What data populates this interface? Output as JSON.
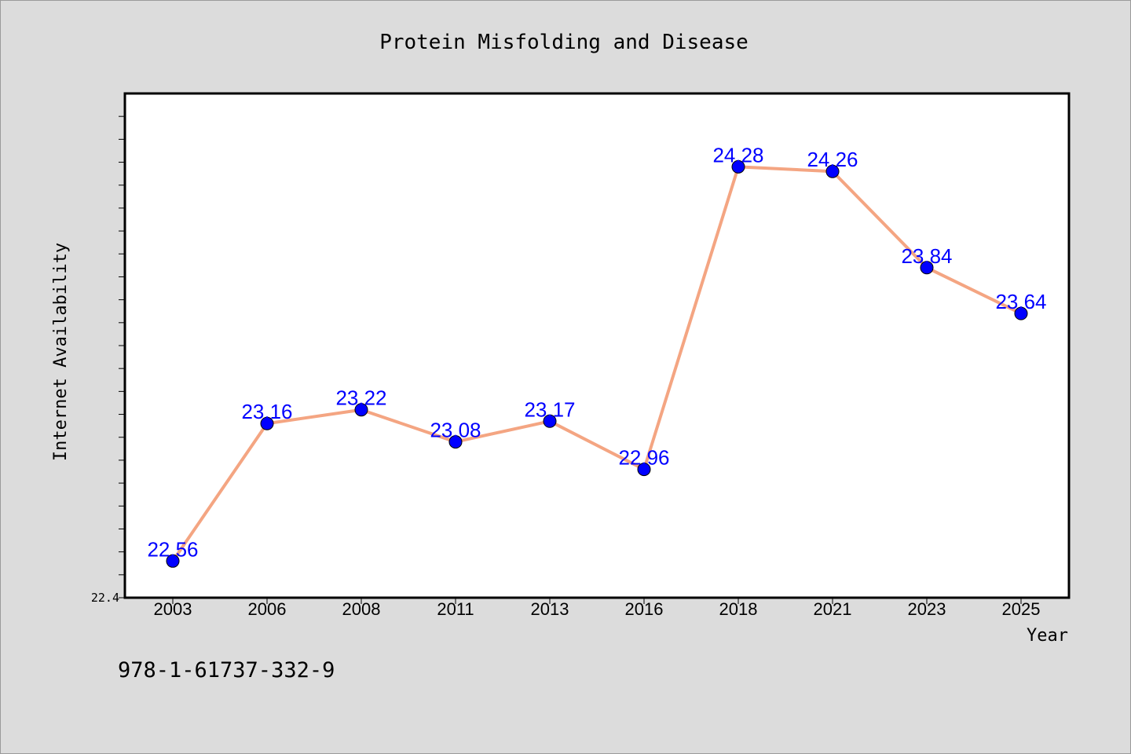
{
  "chart_data": {
    "type": "line",
    "title": "Protein Misfolding and Disease",
    "xlabel": "Year",
    "ylabel": "Internet Availability",
    "categories": [
      "2003",
      "2006",
      "2008",
      "2011",
      "2013",
      "2016",
      "2018",
      "2021",
      "2023",
      "2025"
    ],
    "series": [
      {
        "values": [
          22.56,
          23.16,
          23.22,
          23.08,
          23.17,
          22.96,
          24.28,
          24.26,
          23.84,
          23.64
        ]
      }
    ],
    "y_tick_label": "22.4",
    "ylim": [
      22.4,
      24.6
    ],
    "grid": false,
    "legend": "none",
    "line_color": "#f4a582",
    "marker_color": "#0000ff",
    "label_color": "#0000ff"
  },
  "footer": {
    "isbn": "978-1-61737-332-9"
  }
}
